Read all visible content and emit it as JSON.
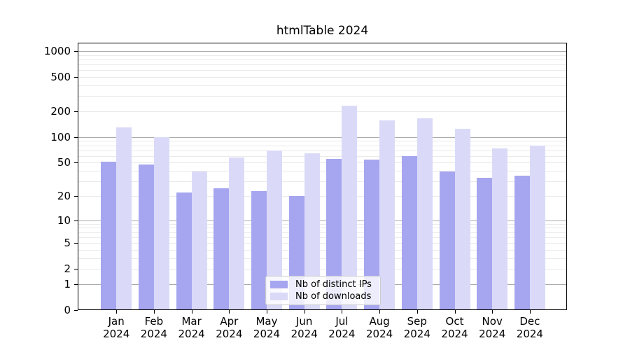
{
  "chart_data": {
    "type": "bar",
    "title": "htmlTable 2024",
    "categories": [
      "Jan",
      "Feb",
      "Mar",
      "Apr",
      "May",
      "Jun",
      "Jul",
      "Aug",
      "Sep",
      "Oct",
      "Nov",
      "Dec"
    ],
    "year": "2024",
    "series": [
      {
        "name": "Nb of distinct IPs",
        "color": "#a6a6f0",
        "values": [
          51,
          48,
          22,
          25,
          23,
          20,
          55,
          54,
          60,
          39,
          33,
          35
        ]
      },
      {
        "name": "Nb of downloads",
        "color": "#dadaf8",
        "values": [
          130,
          100,
          39,
          58,
          70,
          64,
          234,
          157,
          167,
          124,
          74,
          79
        ]
      }
    ],
    "y_scale": "log10(value+1)",
    "y_tick_labels": [
      0,
      1,
      2,
      5,
      10,
      20,
      50,
      100,
      200,
      500,
      1000
    ],
    "y_major_gridlines": [
      1,
      10,
      100,
      1000
    ],
    "ylim": [
      0,
      1250
    ],
    "xlabel": "",
    "ylabel": "",
    "grid": "on",
    "legend_position": "lower center"
  },
  "colors": {
    "background": "#ffffff",
    "spine": "#000000",
    "major_grid": "#ababab",
    "minor_grid": "#eaeaea",
    "text": "#000000",
    "legend_border": "#cccccc"
  }
}
